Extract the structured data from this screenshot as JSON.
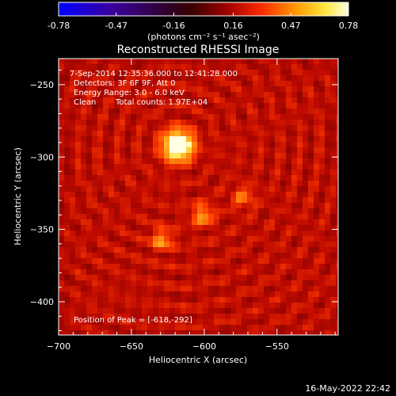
{
  "colors": {
    "background": "#000000",
    "foreground": "#ffffff",
    "colormap": [
      "#0000ff",
      "#3a00a0",
      "#300028",
      "#3a0000",
      "#a00000",
      "#ff2a00",
      "#ff9a00",
      "#ffe640",
      "#ffffe0"
    ]
  },
  "colorbar": {
    "ticks": [
      "-0.78",
      "-0.47",
      "-0.16",
      "0.16",
      "0.47",
      "0.78"
    ],
    "tick_values": [
      -0.78,
      -0.47,
      -0.16,
      0.16,
      0.47,
      0.78
    ],
    "range": [
      -0.78,
      0.78
    ],
    "units_label": "(photons cm⁻² s⁻¹ asec⁻²)"
  },
  "chart_data": {
    "type": "heatmap",
    "title": "Reconstructed RHESSI Image",
    "xlabel": "Heliocentric X (arcsec)",
    "ylabel": "Heliocentric Y (arcsec)",
    "xlim": [
      -700,
      -508
    ],
    "ylim": [
      -423,
      -232
    ],
    "x_ticks": [
      -700,
      -650,
      -600,
      -550
    ],
    "x_tick_labels": [
      "−700",
      "−650",
      "−600",
      "−550"
    ],
    "y_ticks": [
      -250,
      -300,
      -350,
      -400
    ],
    "y_tick_labels": [
      "−250",
      "−300",
      "−350",
      "−400"
    ],
    "sources": [
      {
        "x": -618,
        "y": -292,
        "intensity": 0.78
      },
      {
        "x": -601,
        "y": -340,
        "intensity": 0.32
      },
      {
        "x": -629,
        "y": -357,
        "intensity": 0.3
      },
      {
        "x": -573,
        "y": -328,
        "intensity": 0.22
      }
    ],
    "background_level": 0.1,
    "annotations": {
      "time_range": "7-Sep-2014 12:35:36.000 to 12:41:28.000",
      "detectors": "Detectors: 3F 6F 9F, Att 0",
      "energy_range": "Energy Range: 3.0 - 6.0 keV",
      "clean": "Clean",
      "total_counts": "Total counts: 1.97E+04",
      "peak_position": "Position of Peak = [-618,-292]"
    }
  },
  "footer": {
    "timestamp": "16-May-2022 22:42"
  }
}
